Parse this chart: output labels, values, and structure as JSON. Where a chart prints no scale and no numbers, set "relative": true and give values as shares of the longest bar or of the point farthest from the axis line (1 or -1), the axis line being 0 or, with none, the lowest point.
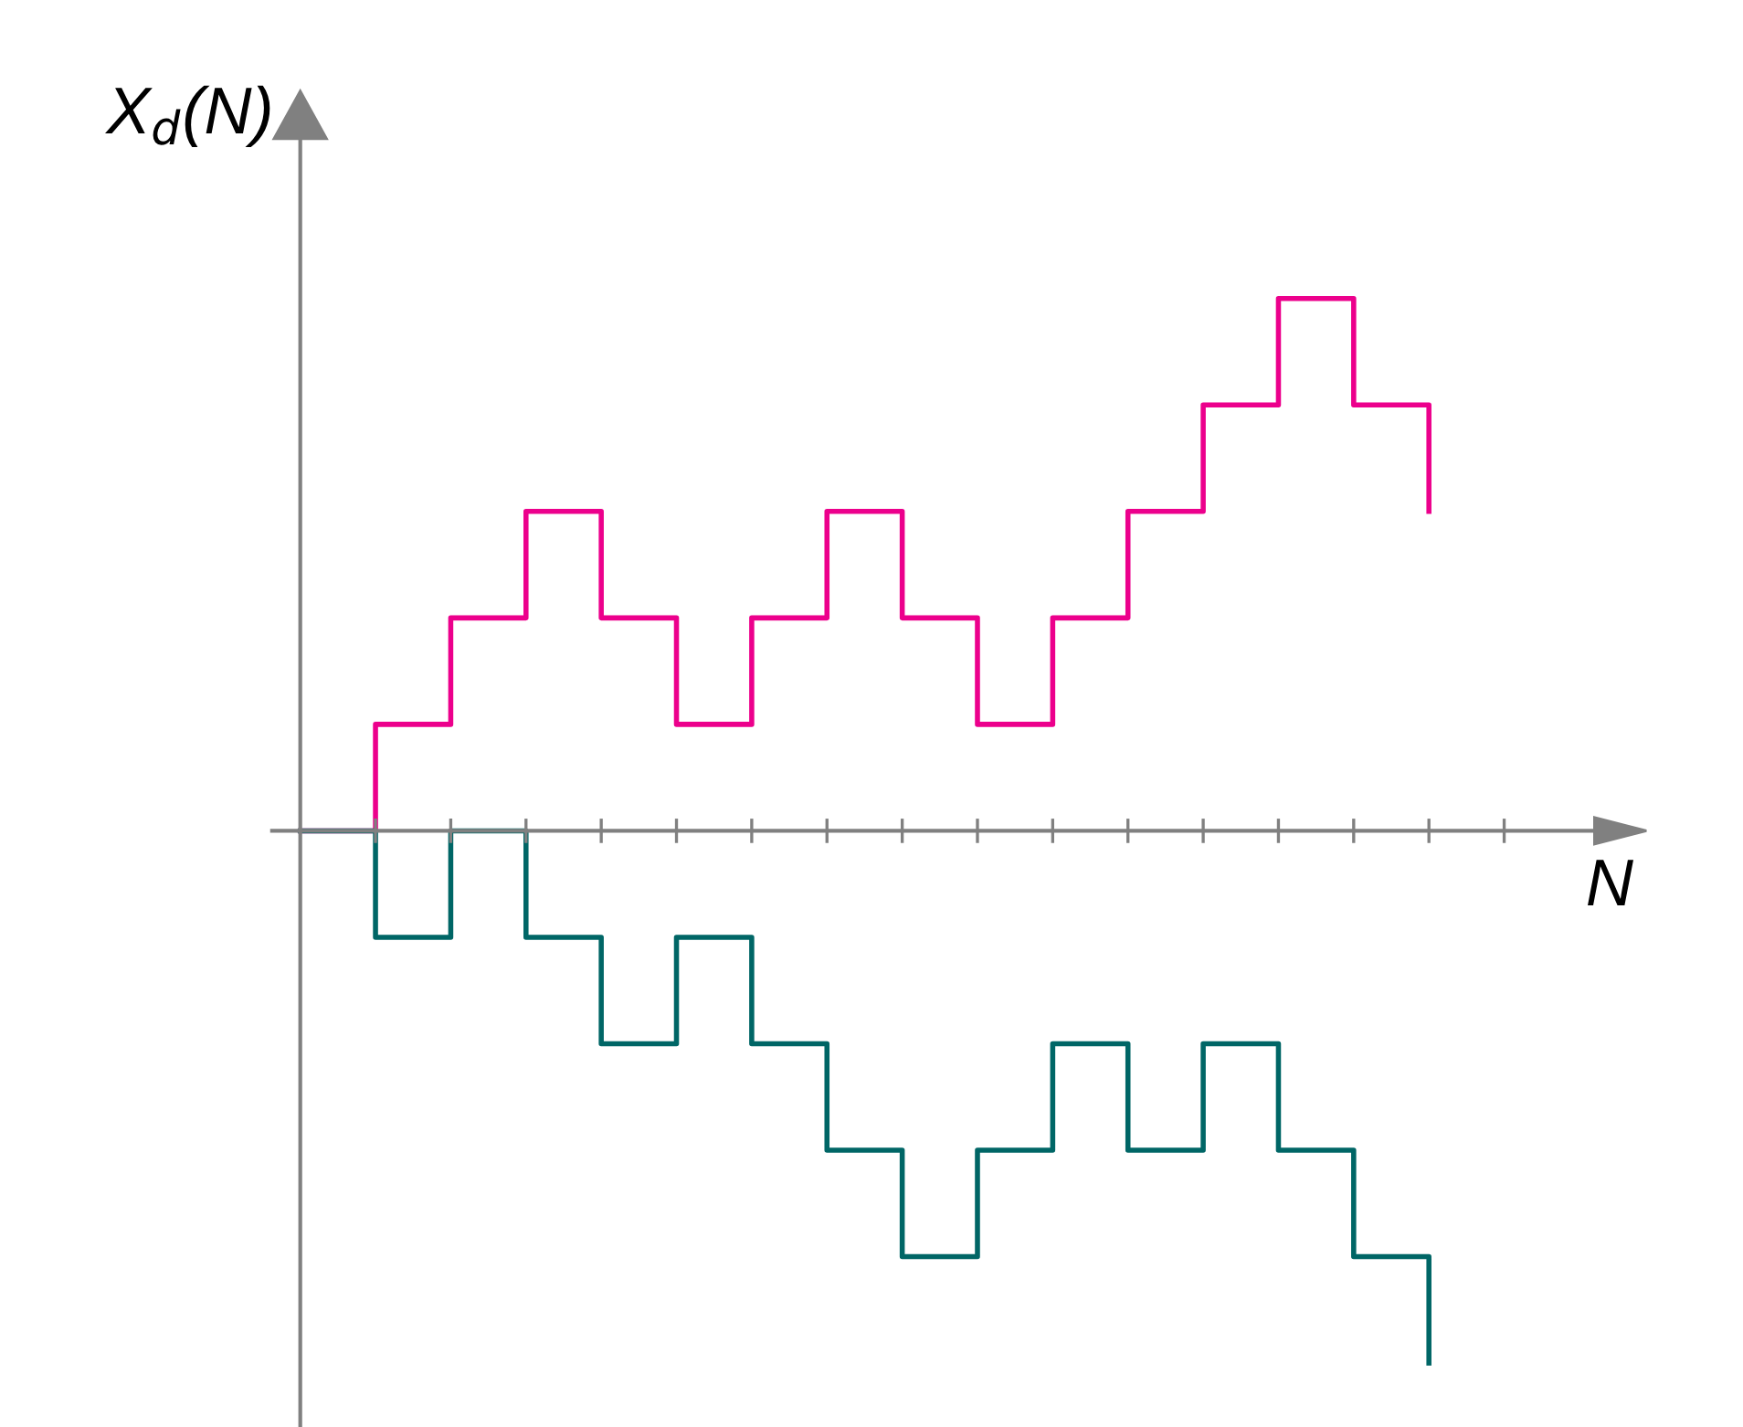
{
  "chart_data": {
    "type": "step",
    "relative": true,
    "xlabel": "N",
    "ylabel": "X$_{d}$(N)",
    "categories": [
      null,
      null,
      null,
      null,
      null,
      null,
      null,
      null,
      null,
      null,
      null,
      null,
      null,
      null,
      null,
      null
    ],
    "series": [
      {
        "color": "#ec008c",
        "values": [
          0,
          0.2,
          0.4,
          0.6,
          0.4,
          0.2,
          0.4,
          0.6,
          0.4,
          0.2,
          0.4,
          0.6,
          0.8,
          1,
          0.8,
          0.6
        ]
      },
      {
        "color": "#006666",
        "values": [
          0,
          -0.2,
          0,
          -0.2,
          -0.4,
          -0.2,
          -0.4,
          -0.6,
          -0.8,
          -0.6,
          -0.4,
          -0.6,
          -0.4,
          -0.6,
          -0.8,
          -1
        ]
      }
    ],
    "legend": false
  }
}
